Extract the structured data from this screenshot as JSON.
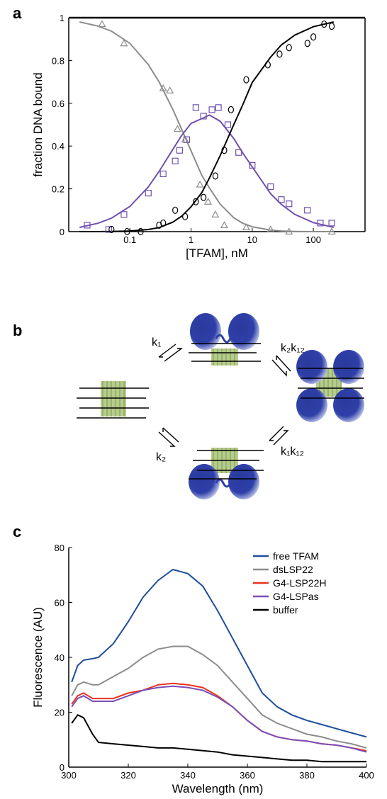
{
  "chart_data": [
    {
      "type": "scatter",
      "panel": "a",
      "ylabel": "fraction DNA bound",
      "xlabel": "[TFAM], nM",
      "xscale": "log",
      "xlim": [
        0.01,
        700
      ],
      "xticks": [
        0.1,
        1,
        10,
        100
      ],
      "ylim": [
        0,
        1
      ],
      "yticks": [
        0,
        0.2,
        0.4,
        0.6,
        0.8,
        1
      ],
      "series": [
        {
          "color": "#8c8c8c",
          "marker": "triangle",
          "x": [
            0.035,
            0.08,
            0.35,
            0.45,
            0.6,
            0.8,
            1.4,
            1.9,
            2.5,
            3.5,
            8,
            20,
            40,
            200
          ],
          "values": [
            0.97,
            0.88,
            0.67,
            0.66,
            0.48,
            0.43,
            0.22,
            0.14,
            0.08,
            0.03,
            0.02,
            0.01,
            0.0,
            0.0
          ]
        },
        {
          "color": "#7050b0",
          "marker": "square",
          "x": [
            0.02,
            0.045,
            0.08,
            0.2,
            0.35,
            0.55,
            0.65,
            0.85,
            1.2,
            1.6,
            2.2,
            2.8,
            4,
            6,
            10,
            20,
            30,
            40,
            80,
            130,
            200
          ],
          "values": [
            0.03,
            0.01,
            0.08,
            0.18,
            0.27,
            0.33,
            0.38,
            0.43,
            0.58,
            0.54,
            0.57,
            0.58,
            0.5,
            0.37,
            0.31,
            0.21,
            0.15,
            0.13,
            0.1,
            0.04,
            0.04
          ]
        },
        {
          "color": "#000000",
          "marker": "circle",
          "x": [
            0.05,
            0.09,
            0.15,
            0.3,
            0.35,
            0.55,
            0.8,
            1.2,
            1.6,
            2.5,
            3.5,
            4.5,
            8,
            18,
            28,
            40,
            80,
            100,
            150,
            200
          ],
          "values": [
            0.01,
            0.0,
            0.0,
            0.03,
            0.04,
            0.1,
            0.07,
            0.14,
            0.16,
            0.26,
            0.38,
            0.57,
            0.71,
            0.78,
            0.83,
            0.86,
            0.88,
            0.91,
            0.97,
            0.96
          ]
        }
      ],
      "fits": [
        {
          "color": "#8c8c8c",
          "x": [
            0.015,
            0.03,
            0.05,
            0.1,
            0.2,
            0.3,
            0.5,
            0.7,
            1,
            1.5,
            2,
            3,
            5,
            7,
            10,
            20,
            30,
            50,
            100,
            215
          ],
          "values": [
            0.98,
            0.961,
            0.937,
            0.88,
            0.781,
            0.7,
            0.573,
            0.479,
            0.378,
            0.263,
            0.204,
            0.128,
            0.065,
            0.039,
            0.023,
            0.007,
            0.003,
            0.001,
            0.0,
            0.0
          ]
        },
        {
          "color": "#7050b0",
          "x": [
            0.015,
            0.03,
            0.05,
            0.1,
            0.2,
            0.3,
            0.5,
            0.7,
            1,
            1.5,
            2,
            3,
            5,
            7,
            10,
            20,
            30,
            50,
            100,
            215
          ],
          "values": [
            0.02,
            0.039,
            0.063,
            0.118,
            0.209,
            0.281,
            0.383,
            0.449,
            0.506,
            0.528,
            0.545,
            0.516,
            0.435,
            0.368,
            0.303,
            0.177,
            0.127,
            0.08,
            0.042,
            0.02
          ]
        },
        {
          "color": "#000000",
          "x": [
            0.015,
            0.03,
            0.05,
            0.1,
            0.2,
            0.3,
            0.5,
            0.7,
            1,
            1.5,
            2,
            3,
            5,
            7,
            10,
            20,
            30,
            50,
            100,
            215
          ],
          "values": [
            0.0,
            0.0,
            0.001,
            0.003,
            0.01,
            0.019,
            0.044,
            0.072,
            0.116,
            0.182,
            0.251,
            0.356,
            0.5,
            0.593,
            0.697,
            0.816,
            0.873,
            0.919,
            0.958,
            0.98
          ]
        }
      ]
    },
    {
      "type": "line",
      "panel": "c",
      "ylabel": "Fluorescence (AU)",
      "xlabel": "Wavelength (nm)",
      "xlim": [
        300,
        400
      ],
      "xticks": [
        300,
        320,
        340,
        360,
        380,
        400
      ],
      "ylim": [
        0,
        80
      ],
      "yticks": [
        0,
        20,
        40,
        60,
        80
      ],
      "legend": "upper right",
      "x": [
        301,
        303,
        305,
        308,
        310,
        315,
        320,
        325,
        330,
        335,
        340,
        345,
        350,
        355,
        360,
        365,
        370,
        375,
        380,
        385,
        390,
        395,
        400
      ],
      "series": [
        {
          "name": "free TFAM",
          "color": "#1f4e9c",
          "values": [
            31,
            37,
            39,
            39.5,
            40,
            45,
            53,
            62,
            68,
            72,
            70.5,
            66,
            57,
            47,
            37,
            27,
            22,
            19,
            17,
            15.5,
            14,
            12.5,
            11
          ]
        },
        {
          "name": "dsLSP22",
          "color": "#8c8c8c",
          "values": [
            26,
            30,
            31,
            30,
            30,
            33,
            36,
            40,
            43,
            44,
            44,
            41,
            37,
            31,
            25,
            19,
            16,
            14,
            12,
            11,
            9.5,
            8.5,
            7
          ]
        },
        {
          "name": "G4-LSP22H",
          "color": "#e8321e",
          "values": [
            23,
            26,
            27,
            25,
            25,
            25,
            27,
            28,
            30,
            30.5,
            30,
            29,
            26,
            22,
            17,
            13,
            11,
            10,
            9.5,
            8.5,
            8,
            7,
            6
          ]
        },
        {
          "name": "G4-LSPas",
          "color": "#7a4fb8",
          "values": [
            22,
            25,
            26,
            24,
            24,
            24,
            26,
            28,
            29,
            29.5,
            29,
            28,
            25.5,
            22,
            17,
            13,
            11,
            10,
            9.5,
            8.5,
            8,
            7,
            5.5
          ]
        },
        {
          "name": "buffer",
          "color": "#000000",
          "values": [
            16,
            19,
            18,
            12,
            9,
            8.5,
            8,
            7.5,
            7,
            7,
            6.5,
            6,
            5.5,
            4.5,
            4,
            3.5,
            3,
            2.5,
            2.5,
            2,
            2,
            2,
            2
          ]
        }
      ]
    }
  ],
  "diagram": {
    "panel": "b",
    "labels": [
      "k₁",
      "k₂k₁₂",
      "k₂",
      "k₁k₁₂"
    ]
  }
}
